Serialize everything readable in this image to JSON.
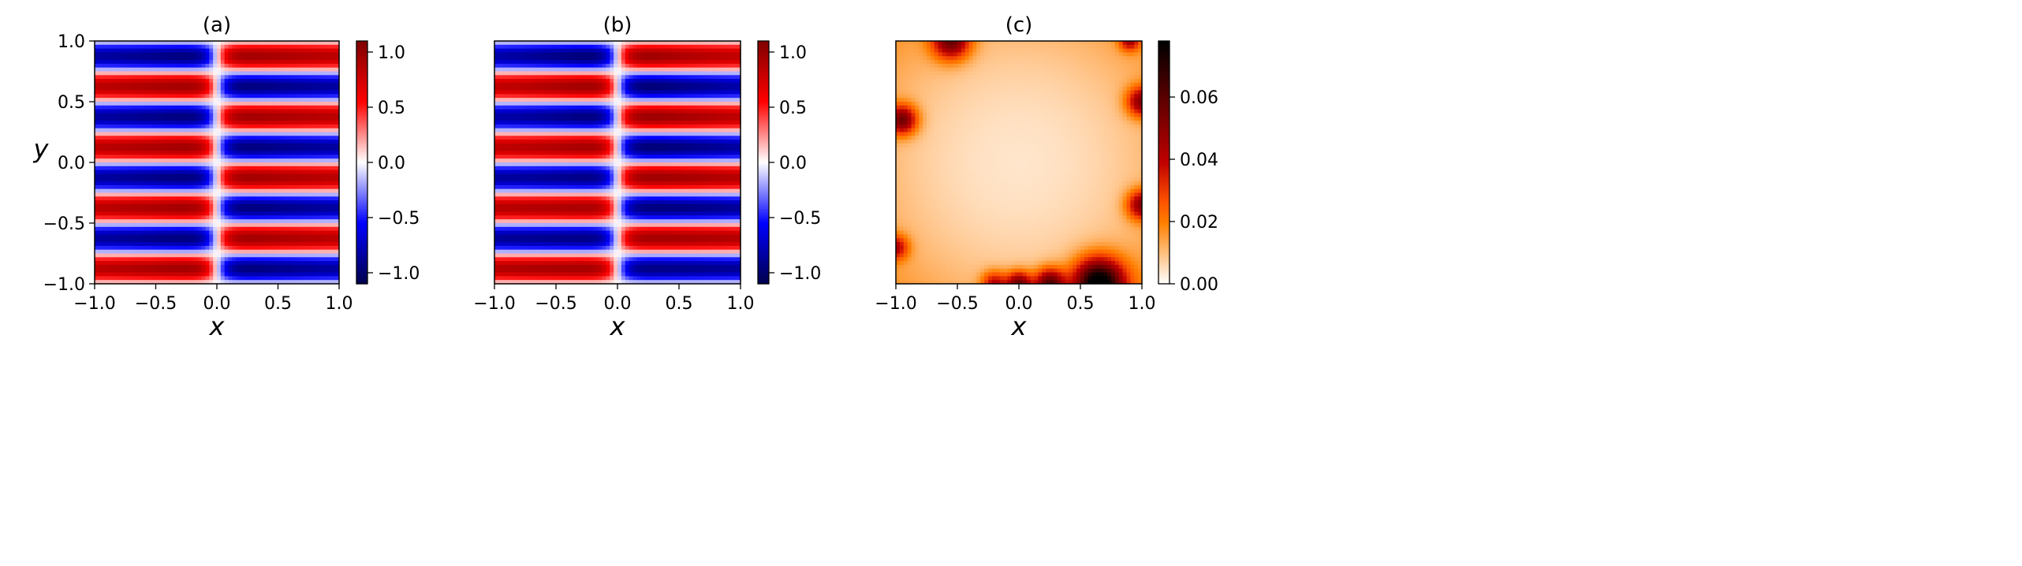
{
  "figure": {
    "background": "#ffffff"
  },
  "chart_data": [
    {
      "type": "heatmap",
      "title": "(a)",
      "xlabel": "x",
      "ylabel": "y",
      "xlim": [
        -1.0,
        1.0
      ],
      "ylim": [
        -1.0,
        1.0
      ],
      "xticks": [
        "−1.0",
        "−0.5",
        "0.0",
        "0.5",
        "1.0"
      ],
      "yticks": [
        "−1.0",
        "−0.5",
        "0.0",
        "0.5",
        "1.0"
      ],
      "field": "sin(4πy)·tanh(−10x), x·y ∈ [−1,1]²",
      "colormap": "seismic",
      "colorbar": {
        "range": [
          -1.1,
          1.1
        ],
        "ticks": [
          "−1.0",
          "−0.5",
          "0.0",
          "0.5",
          "1.0"
        ]
      },
      "grid": false
    },
    {
      "type": "heatmap",
      "title": "(b)",
      "xlabel": "x",
      "ylabel": "",
      "xlim": [
        -1.0,
        1.0
      ],
      "ylim": [
        -1.0,
        1.0
      ],
      "xticks": [
        "−1.0",
        "−0.5",
        "0.0",
        "0.5",
        "1.0"
      ],
      "yticks": [],
      "field": "approximation of (a)",
      "colormap": "seismic",
      "colorbar": {
        "range": [
          -1.1,
          1.1
        ],
        "ticks": [
          "−1.0",
          "−0.5",
          "0.0",
          "0.5",
          "1.0"
        ]
      },
      "grid": false
    },
    {
      "type": "heatmap",
      "title": "(c)",
      "xlabel": "x",
      "ylabel": "",
      "xlim": [
        -1.0,
        1.0
      ],
      "ylim": [
        -1.0,
        1.0
      ],
      "xticks": [
        "−1.0",
        "−0.5",
        "0.0",
        "0.5",
        "1.0"
      ],
      "yticks": [],
      "field": "absolute error |(a) − (b)|",
      "colormap": "gist_heat_r",
      "colorbar": {
        "range": [
          0.0,
          0.078
        ],
        "ticks": [
          "0.00",
          "0.02",
          "0.04",
          "0.06"
        ]
      },
      "grid": false
    }
  ]
}
